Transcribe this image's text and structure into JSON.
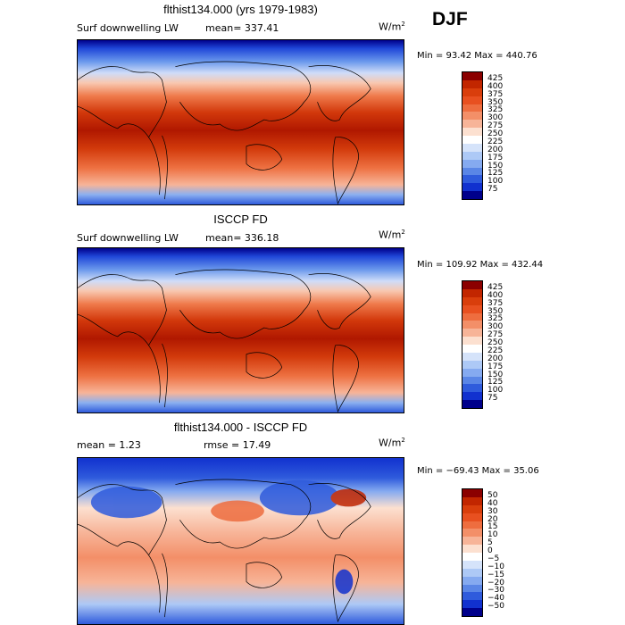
{
  "season": "DJF",
  "units_base": "W/m",
  "units_exp": "2",
  "panels": [
    {
      "title": "flthist134.000 (yrs 1979-1983)",
      "left_label": "Surf downwelling LW",
      "mid_label": "mean= 337.41",
      "minmax": "Min =  93.42 Max = 440.76",
      "kind": "abs"
    },
    {
      "title": "ISCCP FD",
      "left_label": "Surf downwelling LW",
      "mid_label": "mean= 336.18",
      "minmax": "Min = 109.92 Max = 432.44",
      "kind": "abs"
    },
    {
      "title": "flthist134.000 - ISCCP FD",
      "left_label": "mean =   1.23",
      "mid_label": "rmse =  17.49",
      "minmax": "Min = −69.43 Max =  35.06",
      "kind": "diff"
    }
  ],
  "colorbars": {
    "abs": {
      "levels": [
        "425",
        "400",
        "375",
        "350",
        "325",
        "300",
        "275",
        "250",
        "225",
        "200",
        "175",
        "150",
        "125",
        "100",
        "75"
      ],
      "colors": [
        "#8b0000",
        "#c22600",
        "#d93e0c",
        "#e85020",
        "#ee6d3f",
        "#f38f68",
        "#f7b498",
        "#fce0d0",
        "#ffffff",
        "#d5e3fa",
        "#adc9f6",
        "#85aaf0",
        "#5a86e6",
        "#2f5bdc",
        "#1131cf",
        "#00008b"
      ]
    },
    "diff": {
      "levels": [
        "50",
        "40",
        "30",
        "20",
        "15",
        "10",
        "5",
        "0",
        "−5",
        "−10",
        "−15",
        "−20",
        "−30",
        "−40",
        "−50"
      ],
      "colors": [
        "#8b0000",
        "#c22600",
        "#d93e0c",
        "#e85020",
        "#ee6d3f",
        "#f38f68",
        "#f7b498",
        "#fce0d0",
        "#ffffff",
        "#d5e3fa",
        "#adc9f6",
        "#85aaf0",
        "#5a86e6",
        "#2f5bdc",
        "#1131cf",
        "#00008b"
      ]
    }
  },
  "chart_data": [
    {
      "type": "heatmap",
      "title": "flthist134.000 (yrs 1979-1983)",
      "variable": "Surf downwelling LW",
      "mean": 337.41,
      "min": 93.42,
      "max": 440.76,
      "units": "W/m2",
      "season": "DJF",
      "colorbar_levels": [
        75,
        100,
        125,
        150,
        175,
        200,
        225,
        250,
        275,
        300,
        325,
        350,
        375,
        400,
        425
      ]
    },
    {
      "type": "heatmap",
      "title": "ISCCP FD",
      "variable": "Surf downwelling LW",
      "mean": 336.18,
      "min": 109.92,
      "max": 432.44,
      "units": "W/m2",
      "season": "DJF",
      "colorbar_levels": [
        75,
        100,
        125,
        150,
        175,
        200,
        225,
        250,
        275,
        300,
        325,
        350,
        375,
        400,
        425
      ]
    },
    {
      "type": "heatmap",
      "title": "flthist134.000 - ISCCP FD",
      "mean": 1.23,
      "rmse": 17.49,
      "min": -69.43,
      "max": 35.06,
      "units": "W/m2",
      "season": "DJF",
      "colorbar_levels": [
        -50,
        -40,
        -30,
        -20,
        -15,
        -10,
        -5,
        0,
        5,
        10,
        15,
        20,
        30,
        40,
        50
      ]
    }
  ]
}
